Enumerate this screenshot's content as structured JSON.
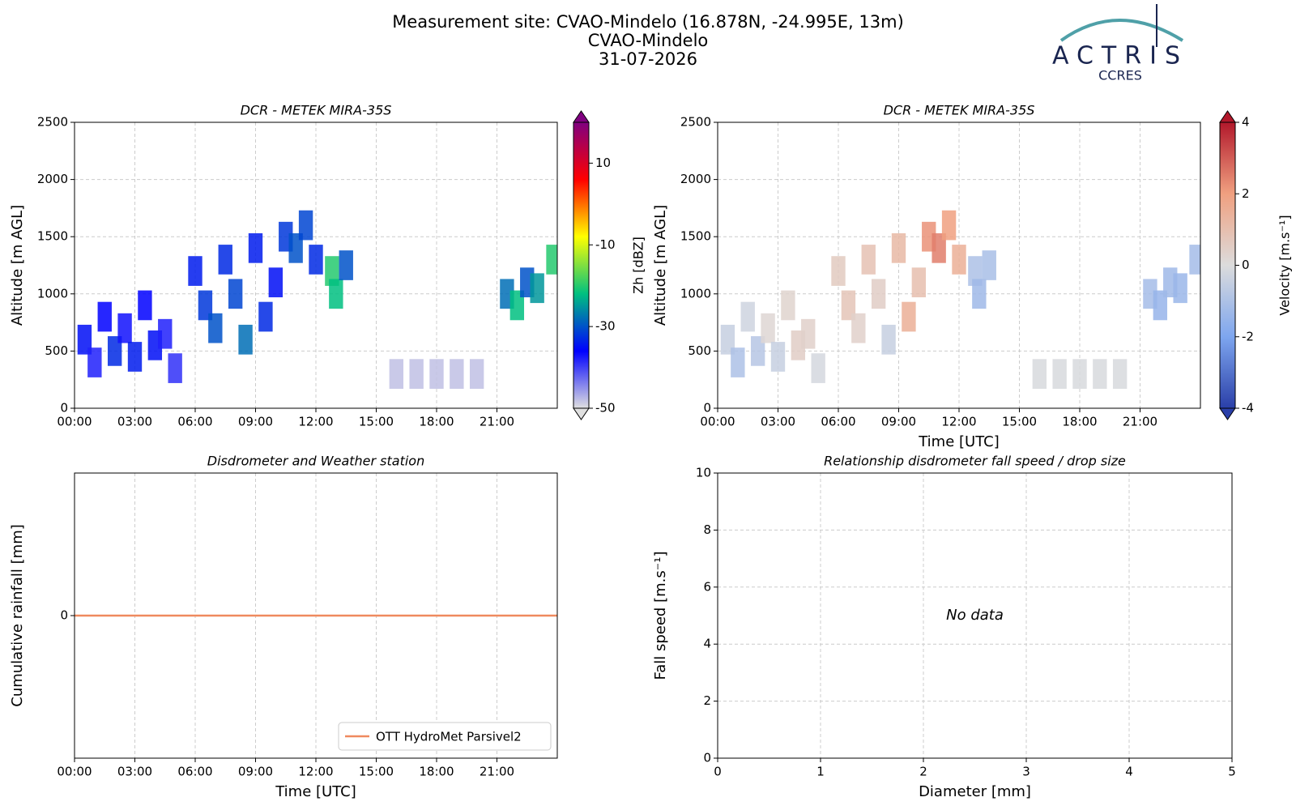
{
  "header": {
    "title_lines": [
      "Measurement site: CVAO-Mindelo (16.878N, -24.995E, 13m)",
      "CVAO-Mindelo",
      "31-07-2026"
    ],
    "logo": {
      "name": "ACTRIS",
      "subtitle": "CCRES"
    }
  },
  "chart_data": [
    {
      "type": "heatmap",
      "title": "DCR - METEK MIRA-35S",
      "y_label": "Altitude [m AGL]",
      "xlim": [
        0,
        24
      ],
      "xticks": [
        {
          "value": 0,
          "label": "00:00"
        },
        {
          "value": 3,
          "label": "03:00"
        },
        {
          "value": 6,
          "label": "06:00"
        },
        {
          "value": 9,
          "label": "09:00"
        },
        {
          "value": 12,
          "label": "12:00"
        },
        {
          "value": 15,
          "label": "15:00"
        },
        {
          "value": 18,
          "label": "18:00"
        },
        {
          "value": 21,
          "label": "21:00"
        }
      ],
      "ylim": [
        0,
        2500
      ],
      "yticks": [
        0,
        500,
        1000,
        1500,
        2000,
        2500
      ],
      "grid": true,
      "x": [
        0.5,
        1,
        1.5,
        2,
        2.5,
        3,
        3.5,
        4,
        4.5,
        5,
        6,
        6.5,
        7,
        7.5,
        8,
        8.5,
        9,
        9.5,
        10,
        10.5,
        11,
        11.5,
        12,
        12.8,
        13,
        13.5,
        16,
        17,
        18,
        19,
        20,
        21.5,
        22,
        22.5,
        23,
        23.8
      ],
      "y": [
        600,
        400,
        800,
        500,
        700,
        450,
        900,
        550,
        650,
        350,
        1200,
        900,
        700,
        1300,
        1000,
        600,
        1400,
        800,
        1100,
        1500,
        1400,
        1600,
        1300,
        1200,
        1000,
        1250,
        300,
        300,
        300,
        300,
        300,
        1000,
        900,
        1100,
        1050,
        1300
      ],
      "values": [
        -35,
        -38,
        -36,
        -33,
        -37,
        -34,
        -36,
        -35,
        -38,
        -39,
        -34,
        -32,
        -30,
        -33,
        -31,
        -28,
        -34,
        -33,
        -35,
        -32,
        -30,
        -31,
        -33,
        -20,
        -22,
        -30,
        -48,
        -48,
        -48,
        -48,
        -48,
        -28,
        -22,
        -30,
        -25,
        -20
      ],
      "zlim": [
        -50,
        20
      ],
      "zticks": [
        -50,
        -30,
        -10,
        10
      ],
      "z_label": "Zh [dBZ]",
      "colormap": [
        "#e0e0e0",
        "#0000ff",
        "#00c080",
        "#ffff00",
        "#ff0000",
        "#800080"
      ]
    },
    {
      "type": "heatmap",
      "title": "DCR - METEK MIRA-35S",
      "x_label": "Time [UTC]",
      "y_label": "Altitude [m AGL]",
      "xlim": [
        0,
        24
      ],
      "xticks": [
        {
          "value": 0,
          "label": "00:00"
        },
        {
          "value": 3,
          "label": "03:00"
        },
        {
          "value": 6,
          "label": "06:00"
        },
        {
          "value": 9,
          "label": "09:00"
        },
        {
          "value": 12,
          "label": "12:00"
        },
        {
          "value": 15,
          "label": "15:00"
        },
        {
          "value": 18,
          "label": "18:00"
        },
        {
          "value": 21,
          "label": "21:00"
        }
      ],
      "ylim": [
        0,
        2500
      ],
      "yticks": [
        0,
        500,
        1000,
        1500,
        2000,
        2500
      ],
      "grid": true,
      "x": [
        0.5,
        1,
        1.5,
        2,
        2.5,
        3,
        3.5,
        4,
        4.5,
        5,
        6,
        6.5,
        7,
        7.5,
        8,
        8.5,
        9,
        9.5,
        10,
        10.5,
        11,
        11.5,
        12,
        12.8,
        13,
        13.5,
        16,
        17,
        18,
        19,
        20,
        21.5,
        22,
        22.5,
        23,
        23.8
      ],
      "y": [
        600,
        400,
        800,
        500,
        700,
        450,
        900,
        550,
        650,
        350,
        1200,
        900,
        700,
        1300,
        1000,
        600,
        1400,
        800,
        1100,
        1500,
        1400,
        1600,
        1300,
        1200,
        1000,
        1250,
        300,
        300,
        300,
        300,
        300,
        1000,
        900,
        1100,
        1050,
        1300
      ],
      "values": [
        -0.5,
        -1,
        -0.3,
        -0.8,
        0.2,
        -0.5,
        0.3,
        0.5,
        0.4,
        -0.2,
        0.6,
        0.8,
        0.4,
        0.9,
        0.5,
        -0.5,
        1.2,
        1.5,
        1,
        2.2,
        2.5,
        2,
        1.5,
        -1,
        -1.3,
        -1.1,
        -0.1,
        -0.1,
        -0.1,
        -0.1,
        -0.1,
        -1.2,
        -1.5,
        -1.3,
        -1.4,
        -1.2
      ],
      "zlim": [
        -4,
        4
      ],
      "zticks": [
        -4,
        -2,
        0,
        2,
        4
      ],
      "z_label": "Velocity [m.s⁻¹]",
      "colormap": [
        "#2a3fa8",
        "#7ea6ef",
        "#dcdcdc",
        "#f0a080",
        "#b2182b"
      ]
    },
    {
      "type": "line",
      "title": "Disdrometer and Weather station",
      "x_label": "Time [UTC]",
      "y_label": "Cumulative rainfall [mm]",
      "xlim": [
        0,
        24
      ],
      "xticks": [
        {
          "value": 0,
          "label": "00:00"
        },
        {
          "value": 3,
          "label": "03:00"
        },
        {
          "value": 6,
          "label": "06:00"
        },
        {
          "value": 9,
          "label": "09:00"
        },
        {
          "value": 12,
          "label": "12:00"
        },
        {
          "value": 15,
          "label": "15:00"
        },
        {
          "value": 18,
          "label": "18:00"
        },
        {
          "value": 21,
          "label": "21:00"
        }
      ],
      "ylim": [
        -0.055,
        0.055
      ],
      "yticks": [
        0
      ],
      "grid": true,
      "legend": "lower-right",
      "x": [
        0,
        24
      ],
      "series": [
        {
          "name": "OTT HydroMet Parsivel2",
          "color": "#ef8a5f",
          "values": [
            0,
            0
          ]
        }
      ]
    },
    {
      "type": "scatter",
      "title": "Relationship disdrometer fall speed / drop size",
      "x_label": "Diameter [mm]",
      "y_label": "Fall speed [m.s⁻¹]",
      "xlim": [
        0,
        5
      ],
      "xticks": [
        0,
        1,
        2,
        3,
        4,
        5
      ],
      "ylim": [
        0,
        10
      ],
      "yticks": [
        0,
        2,
        4,
        6,
        8,
        10
      ],
      "grid": true,
      "annotation": "No data",
      "x": [],
      "values": []
    }
  ]
}
